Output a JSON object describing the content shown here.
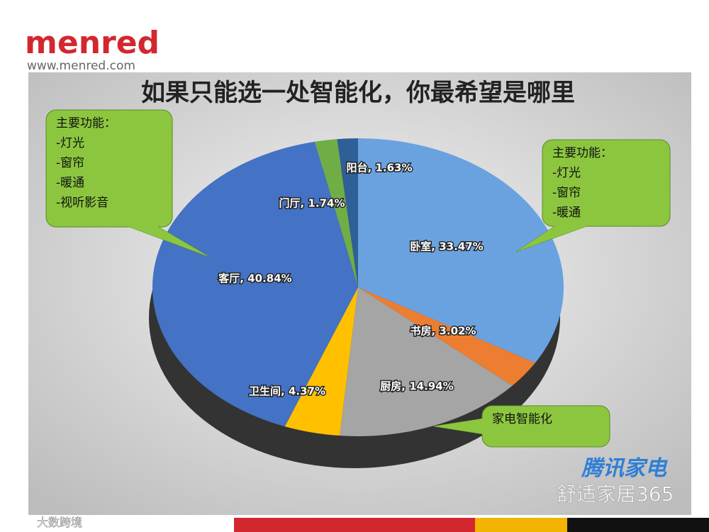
{
  "logo": {
    "brand": "menred",
    "url": "www.menred.com"
  },
  "chart_data": {
    "type": "pie",
    "title": "如果只能选一处智能化，你最希望是哪里",
    "values": [
      33.47,
      3.02,
      14.94,
      4.37,
      40.84,
      1.74,
      1.63
    ],
    "value_labels": [
      "卧室, 33.47%",
      "书房, 3.02%",
      "厨房, 14.94%",
      "卫生间, 4.37%",
      "客厅, 40.84%",
      "门厅, 1.74%",
      "阳台, 1.63%"
    ],
    "colors": [
      "#6aa2e0",
      "#ed7d31",
      "#a5a5a5",
      "#ffc000",
      "#4472c4",
      "#70ad47",
      "#2e5f96"
    ]
  },
  "callouts": [
    {
      "lines": [
        "主要功能：",
        "-灯光",
        "-窗帘",
        "-暖通",
        "-视听影音"
      ]
    },
    {
      "lines": [
        "主要功能：",
        "-灯光",
        "-窗帘",
        "-暖通"
      ]
    },
    {
      "lines": [
        "家电智能化"
      ]
    }
  ],
  "watermarks": [
    "腾讯家电",
    "舒适家居365",
    "大数跨境"
  ]
}
